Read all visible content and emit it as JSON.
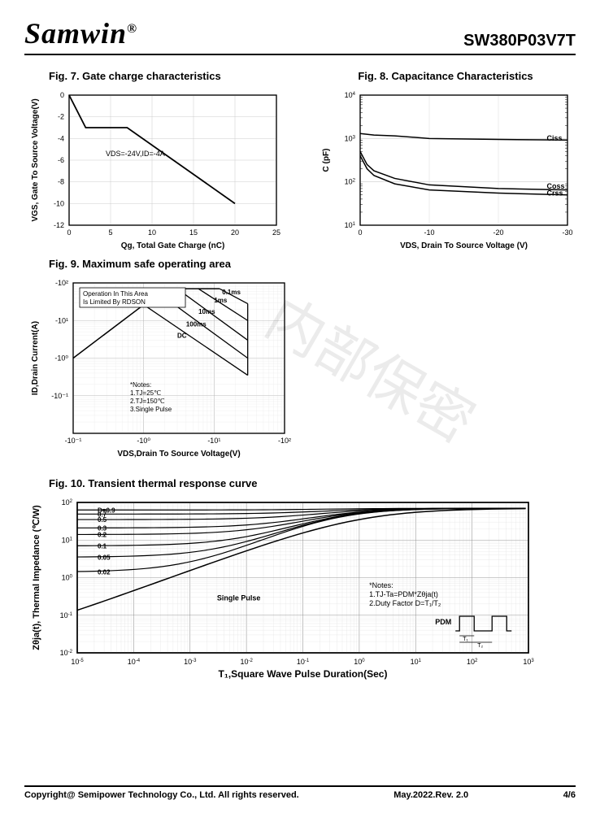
{
  "header": {
    "logo_text": "Samwin",
    "logo_reg": "®",
    "part_number": "SW380P03V7T"
  },
  "fig7": {
    "title": "Fig. 7. Gate charge characteristics",
    "xlabel": "Qg, Total Gate Charge (nC)",
    "ylabel": "VGS, Gate To Source Voltage(V)",
    "annotation": "VDS=-24V,ID=-4A",
    "xlim": [
      0,
      25
    ],
    "xticks": [
      0,
      5,
      10,
      15,
      20,
      25
    ],
    "ylim": [
      0,
      -12
    ],
    "yticks": [
      0,
      -2,
      -4,
      -6,
      -8,
      -10,
      -12
    ],
    "points": [
      [
        0,
        0
      ],
      [
        2,
        -3
      ],
      [
        7,
        -3
      ],
      [
        20,
        -10
      ]
    ],
    "line_color": "#000000",
    "grid_color": "#cccccc",
    "bg": "#ffffff",
    "fontsize": 9
  },
  "fig8": {
    "title": "Fig. 8. Capacitance Characteristics",
    "xlabel": "VDS, Drain To Source Voltage (V)",
    "ylabel": "C (pF)",
    "xlim": [
      0,
      -30
    ],
    "xticks": [
      0,
      -10,
      -20,
      -30
    ],
    "ylim_log": [
      10,
      10000
    ],
    "yticks_exp": [
      1,
      2,
      3,
      4
    ],
    "series": [
      {
        "label": "Ciss",
        "label_x": -27,
        "label_y": 900,
        "pts": [
          [
            0,
            1300
          ],
          [
            -2,
            1200
          ],
          [
            -5,
            1150
          ],
          [
            -10,
            1000
          ],
          [
            -20,
            950
          ],
          [
            -30,
            920
          ]
        ]
      },
      {
        "label": "Coss",
        "label_x": -27,
        "label_y": 70,
        "pts": [
          [
            0,
            500
          ],
          [
            -1,
            250
          ],
          [
            -2,
            180
          ],
          [
            -5,
            120
          ],
          [
            -10,
            85
          ],
          [
            -20,
            70
          ],
          [
            -30,
            65
          ]
        ]
      },
      {
        "label": "Crss",
        "label_x": -27,
        "label_y": 48,
        "pts": [
          [
            0,
            400
          ],
          [
            -1,
            200
          ],
          [
            -2,
            140
          ],
          [
            -5,
            90
          ],
          [
            -10,
            65
          ],
          [
            -20,
            55
          ],
          [
            -30,
            50
          ]
        ]
      }
    ],
    "line_color": "#000000",
    "bg": "#ffffff",
    "fontsize": 9
  },
  "fig9": {
    "title": "Fig. 9. Maximum safe operating area",
    "xlabel": "VDS,Drain To Source Voltage(V)",
    "ylabel": "ID,Drain Current(A)",
    "xticks_log": [
      -0.1,
      -1,
      -10,
      -100
    ],
    "xtick_labels": [
      "-10⁻¹",
      "-10⁰",
      "-10¹",
      "-10²"
    ],
    "yticks_log": [
      -0.01,
      -0.1,
      -1,
      -10,
      -100
    ],
    "ytick_labels": [
      "",
      "-10⁻¹",
      "-10⁰",
      "-10¹",
      "-10²"
    ],
    "box_label": "Operation In This Area\nIs Limited By RDSON",
    "curve_labels": [
      "0.1ms",
      "1ms",
      "10ms",
      "100ms",
      "DC"
    ],
    "notes": "*Notes:\n1.TJ=25℃\n2.TJ=150℃\n3.Single Pulse",
    "line_color": "#000000",
    "grid_color": "#bbbbbb",
    "bg": "#ffffff",
    "fontsize": 9
  },
  "fig10": {
    "title": "Fig. 10. Transient thermal response curve",
    "xlabel": "T₁,Square Wave Pulse Duration(Sec)",
    "ylabel": "Zθja(t), Thermal Impedance (℃/W)",
    "xticks_exp": [
      -5,
      -4,
      -3,
      -2,
      -1,
      0,
      1,
      2,
      3
    ],
    "yticks_exp": [
      -2,
      -1,
      0,
      1,
      2
    ],
    "d_labels": [
      "D=0.9",
      "0.7",
      "0.5",
      "0.3",
      "0.2",
      "0.1",
      "0.05",
      "0.02"
    ],
    "single_pulse_label": "Single Pulse",
    "notes": "*Notes:\n1.TJ-Ta=PDM*Zθja(t)\n2.Duty Factor D=T₁/T₂",
    "pdm_label": "PDM",
    "t1_label": "T₁",
    "t2_label": "T₂",
    "line_color": "#000000",
    "grid_color": "#999999",
    "bg": "#ffffff",
    "fontsize": 9
  },
  "footer": {
    "left": "Copyright@ Semipower Technology Co., Ltd. All rights reserved.",
    "center": "May.2022.Rev. 2.0",
    "right": "4/6"
  },
  "watermark": "内部保密"
}
